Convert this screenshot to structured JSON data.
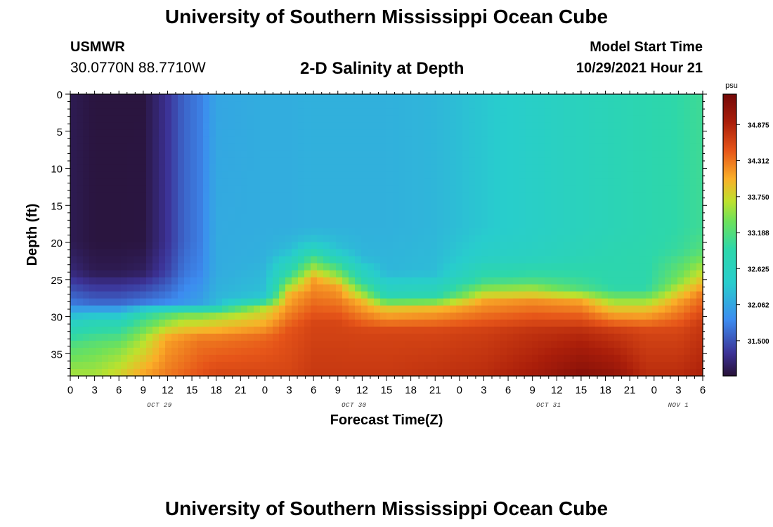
{
  "header": {
    "title": "University of Southern Mississippi Ocean Cube",
    "station": "USMWR",
    "coords": "30.0770N  88.7710W",
    "subtitle": "2-D Salinity at Depth",
    "start_label": "Model Start Time",
    "start_value": "10/29/2021 Hour 21"
  },
  "footer": {
    "title": "University of Southern Mississippi Ocean Cube"
  },
  "chart_data": {
    "type": "heatmap",
    "title": "2-D Salinity at Depth",
    "xlabel": "Forecast Time(Z)",
    "ylabel": "Depth (ft)",
    "x_tick_labels": [
      "0",
      "3",
      "6",
      "9",
      "12",
      "15",
      "18",
      "21",
      "0",
      "3",
      "6",
      "9",
      "12",
      "15",
      "18",
      "21",
      "0",
      "3",
      "6",
      "9",
      "12",
      "15",
      "18",
      "21",
      "0",
      "3",
      "6"
    ],
    "x_range_hours": [
      0,
      78
    ],
    "day_labels": [
      {
        "label": "OCT 29",
        "hour": 11
      },
      {
        "label": "OCT 30",
        "hour": 35
      },
      {
        "label": "OCT 31",
        "hour": 59
      },
      {
        "label": "NOV 1",
        "hour": 75
      }
    ],
    "y_ticks": [
      0,
      5,
      10,
      15,
      20,
      25,
      30,
      35
    ],
    "ylim": [
      38,
      0
    ],
    "colorbar": {
      "unit": "psu",
      "ticks": [
        31.5,
        32.062,
        32.625,
        33.188,
        33.75,
        34.312,
        34.875
      ],
      "tick_labels": [
        "31.500",
        "32.062",
        "32.625",
        "33.188",
        "33.750",
        "34.312",
        "34.875"
      ],
      "range": [
        30.95,
        35.35
      ]
    },
    "depth_profiles": [
      {
        "hour": 0,
        "depth": [
          0,
          20,
          24,
          28,
          31,
          34,
          38
        ],
        "salinity": [
          31.05,
          31.05,
          31.2,
          31.7,
          32.6,
          33.2,
          33.6
        ]
      },
      {
        "hour": 3,
        "depth": [
          0,
          20,
          24,
          28,
          31,
          34,
          38
        ],
        "salinity": [
          30.98,
          30.98,
          31.05,
          31.6,
          32.8,
          33.3,
          33.6
        ]
      },
      {
        "hour": 6,
        "depth": [
          0,
          20,
          24,
          28,
          31,
          34,
          38
        ],
        "salinity": [
          30.98,
          30.98,
          31.05,
          31.6,
          32.8,
          33.4,
          33.8
        ]
      },
      {
        "hour": 9,
        "depth": [
          0,
          20,
          24,
          28,
          30,
          33,
          38
        ],
        "salinity": [
          30.98,
          30.99,
          31.1,
          31.7,
          33.0,
          33.6,
          34.1
        ]
      },
      {
        "hour": 12,
        "depth": [
          0,
          20,
          24,
          28,
          30,
          33,
          38
        ],
        "salinity": [
          31.3,
          31.3,
          31.4,
          31.8,
          33.3,
          34.1,
          34.3
        ]
      },
      {
        "hour": 14,
        "depth": [
          0,
          20,
          24,
          28,
          30,
          33,
          38
        ],
        "salinity": [
          31.6,
          31.6,
          31.7,
          31.9,
          33.5,
          34.2,
          34.4
        ]
      },
      {
        "hour": 16,
        "depth": [
          0,
          20,
          24,
          28,
          30,
          33,
          38
        ],
        "salinity": [
          31.75,
          31.75,
          31.8,
          32.0,
          33.5,
          34.3,
          34.5
        ]
      },
      {
        "hour": 18,
        "depth": [
          0,
          20,
          24,
          28,
          30,
          33,
          38
        ],
        "salinity": [
          32.05,
          32.1,
          32.1,
          32.2,
          33.6,
          34.3,
          34.6
        ]
      },
      {
        "hour": 24,
        "depth": [
          0,
          18,
          22,
          27,
          29,
          33,
          38
        ],
        "salinity": [
          32.12,
          32.12,
          32.15,
          32.3,
          33.7,
          34.4,
          34.6
        ]
      },
      {
        "hour": 27,
        "depth": [
          0,
          18,
          21,
          24,
          27,
          32,
          38
        ],
        "salinity": [
          32.12,
          32.12,
          32.25,
          32.9,
          34.0,
          34.5,
          34.6
        ]
      },
      {
        "hour": 30,
        "depth": [
          0,
          18,
          20,
          22,
          25,
          31,
          38
        ],
        "salinity": [
          32.15,
          32.15,
          32.35,
          33.1,
          34.1,
          34.6,
          34.7
        ]
      },
      {
        "hour": 33,
        "depth": [
          0,
          18,
          21,
          23,
          26,
          31,
          38
        ],
        "salinity": [
          32.15,
          32.15,
          32.3,
          33.0,
          34.1,
          34.6,
          34.7
        ]
      },
      {
        "hour": 36,
        "depth": [
          0,
          18,
          22,
          25,
          28,
          32,
          38
        ],
        "salinity": [
          32.15,
          32.15,
          32.2,
          32.8,
          34.0,
          34.6,
          34.7
        ]
      },
      {
        "hour": 39,
        "depth": [
          0,
          18,
          24,
          27,
          29,
          32,
          38
        ],
        "salinity": [
          32.15,
          32.15,
          32.2,
          32.7,
          33.9,
          34.6,
          34.7
        ]
      },
      {
        "hour": 45,
        "depth": [
          0,
          18,
          24,
          27,
          29,
          32,
          38
        ],
        "salinity": [
          32.2,
          32.2,
          32.25,
          32.8,
          34.0,
          34.6,
          34.75
        ]
      },
      {
        "hour": 51,
        "depth": [
          0,
          18,
          22,
          25,
          28,
          32,
          38
        ],
        "salinity": [
          32.35,
          32.35,
          32.5,
          33.0,
          34.1,
          34.65,
          34.8
        ]
      },
      {
        "hour": 57,
        "depth": [
          0,
          18,
          22,
          25,
          28,
          32,
          38
        ],
        "salinity": [
          32.5,
          32.5,
          32.6,
          33.1,
          34.2,
          34.75,
          34.95
        ]
      },
      {
        "hour": 63,
        "depth": [
          0,
          18,
          22,
          26,
          28,
          32,
          38
        ],
        "salinity": [
          32.65,
          32.65,
          32.75,
          33.1,
          34.1,
          34.8,
          35.2
        ]
      },
      {
        "hour": 67,
        "depth": [
          0,
          18,
          22,
          26,
          29,
          32,
          38
        ],
        "salinity": [
          32.75,
          32.75,
          32.85,
          32.9,
          33.9,
          34.7,
          35.1
        ]
      },
      {
        "hour": 71,
        "depth": [
          0,
          18,
          22,
          26,
          29,
          32,
          38
        ],
        "salinity": [
          32.85,
          32.85,
          32.9,
          32.9,
          33.9,
          34.6,
          34.8
        ]
      },
      {
        "hour": 75,
        "depth": [
          0,
          18,
          21,
          25,
          28,
          32,
          38
        ],
        "salinity": [
          32.95,
          32.95,
          33.0,
          33.4,
          34.1,
          34.6,
          34.8
        ]
      },
      {
        "hour": 78,
        "depth": [
          0,
          18,
          21,
          24,
          27,
          31,
          38
        ],
        "salinity": [
          33.05,
          33.05,
          33.2,
          33.7,
          34.3,
          34.7,
          34.9
        ]
      }
    ]
  }
}
